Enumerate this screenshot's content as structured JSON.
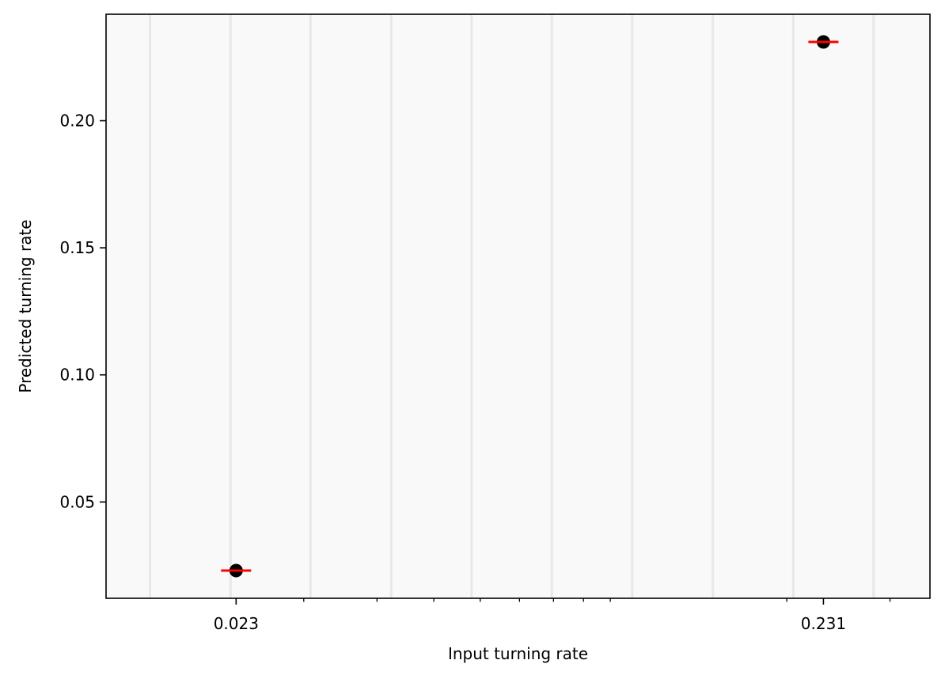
{
  "chart_data": {
    "type": "scatter",
    "xlabel": "Input turning rate",
    "ylabel": "Predicted turning rate",
    "x_scale": "log",
    "xlim": [
      0.0138,
      0.351
    ],
    "ylim": [
      0.0121,
      0.2419
    ],
    "x_ticks": [
      {
        "value": 0.023,
        "label": "0.023"
      },
      {
        "value": 0.231,
        "label": "0.231"
      }
    ],
    "x_minor_ticks": [
      0.03,
      0.04,
      0.05,
      0.06,
      0.07,
      0.08,
      0.09,
      0.1,
      0.2,
      0.3
    ],
    "y_ticks": [
      {
        "value": 0.05,
        "label": "0.05"
      },
      {
        "value": 0.1,
        "label": "0.10"
      },
      {
        "value": 0.15,
        "label": "0.15"
      },
      {
        "value": 0.2,
        "label": "0.20"
      }
    ],
    "background_bands": [
      0.0164,
      0.0225,
      0.0308,
      0.0423,
      0.058,
      0.0795,
      0.109,
      0.1496,
      0.2052,
      0.2813
    ],
    "points": [
      {
        "x": 0.023,
        "y": 0.023
      },
      {
        "x": 0.231,
        "y": 0.231
      }
    ],
    "reference_marks": [
      {
        "x": 0.023,
        "y": 0.023
      },
      {
        "x": 0.231,
        "y": 0.231
      }
    ],
    "colors": {
      "plot_background": "#f9f9f9",
      "band": "#e8e8e8",
      "point": "#000000",
      "reference": "#ff0000",
      "axis": "#000000"
    },
    "grid": false
  }
}
